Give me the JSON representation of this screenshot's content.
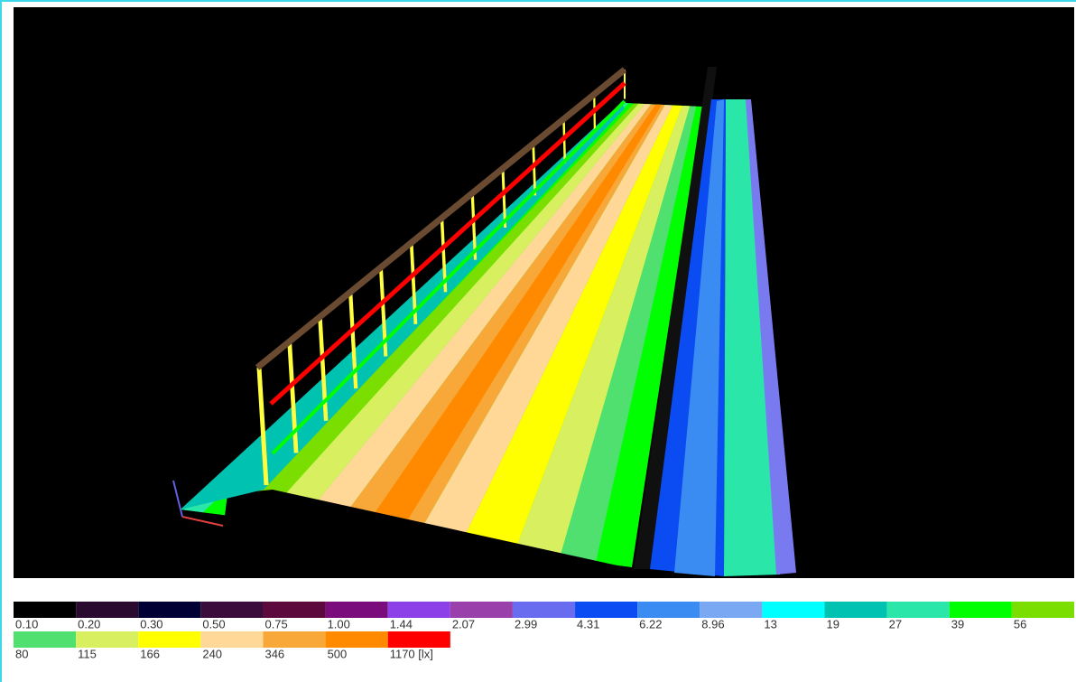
{
  "legend": {
    "entries": [
      {
        "label": "0.10",
        "color": "#000000"
      },
      {
        "label": "0.20",
        "color": "#2a0a2e"
      },
      {
        "label": "0.30",
        "color": "#000035"
      },
      {
        "label": "0.50",
        "color": "#3a0c3c"
      },
      {
        "label": "0.75",
        "color": "#5c0a3e"
      },
      {
        "label": "1.00",
        "color": "#7a0c7c"
      },
      {
        "label": "1.44",
        "color": "#8c40e8"
      },
      {
        "label": "2.07",
        "color": "#9a40aa"
      },
      {
        "label": "2.99",
        "color": "#6a6cf0"
      },
      {
        "label": "4.31",
        "color": "#0a4cf2"
      },
      {
        "label": "6.22",
        "color": "#3a8cf2"
      },
      {
        "label": "8.96",
        "color": "#7aa8f2"
      },
      {
        "label": "13",
        "color": "#00ffff"
      },
      {
        "label": "19",
        "color": "#00c2b0"
      },
      {
        "label": "27",
        "color": "#2ae6a8"
      },
      {
        "label": "39",
        "color": "#00ff00"
      },
      {
        "label": "56",
        "color": "#7ade00"
      },
      {
        "label": "80",
        "color": "#50e070"
      },
      {
        "label": "115",
        "color": "#d8f060"
      },
      {
        "label": "166",
        "color": "#ffff00"
      },
      {
        "label": "240",
        "color": "#ffd898"
      },
      {
        "label": "346",
        "color": "#f8a838"
      },
      {
        "label": "500",
        "color": "#ff8a00"
      },
      {
        "label": "1170 [lx]",
        "color": "#ff0000"
      }
    ]
  }
}
